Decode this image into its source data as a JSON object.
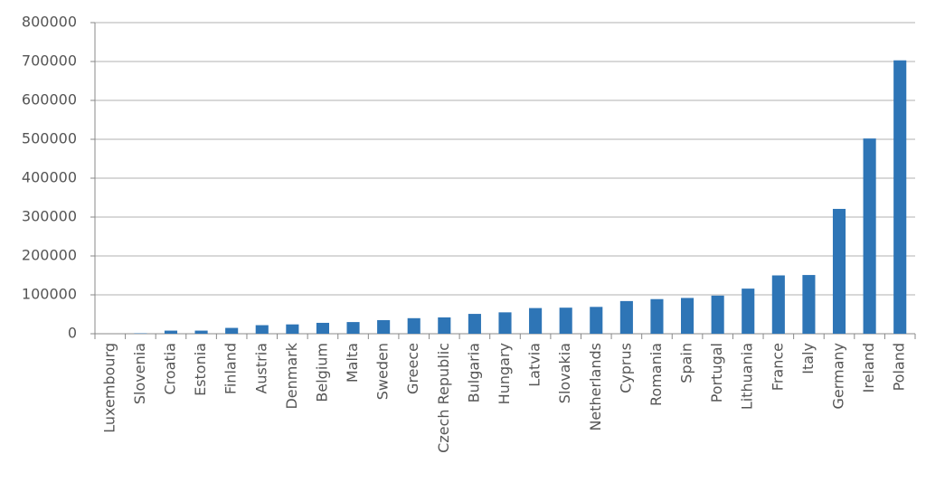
{
  "chart_data": {
    "type": "bar",
    "categories": [
      "Luxembourg",
      "Slovenia",
      "Croatia",
      "Estonia",
      "Finland",
      "Austria",
      "Denmark",
      "Belgium",
      "Malta",
      "Sweden",
      "Greece",
      "Czech Republic",
      "Bulgaria",
      "Hungary",
      "Latvia",
      "Slovakia",
      "Netherlands",
      "Cyprus",
      "Romania",
      "Spain",
      "Portugal",
      "Lithuania",
      "France",
      "Italy",
      "Germany",
      "Ireland",
      "Poland"
    ],
    "values": [
      0,
      1000,
      8000,
      8000,
      15000,
      22000,
      24000,
      28000,
      30000,
      35000,
      40000,
      42000,
      51000,
      55000,
      66000,
      67000,
      69000,
      84000,
      89000,
      92000,
      98000,
      116000,
      150000,
      151000,
      321000,
      502000,
      703000
    ],
    "color": "#2e75b6",
    "ylim": [
      0,
      800000
    ],
    "yticks": [
      0,
      100000,
      200000,
      300000,
      400000,
      500000,
      600000,
      700000,
      800000
    ],
    "grid": true
  }
}
